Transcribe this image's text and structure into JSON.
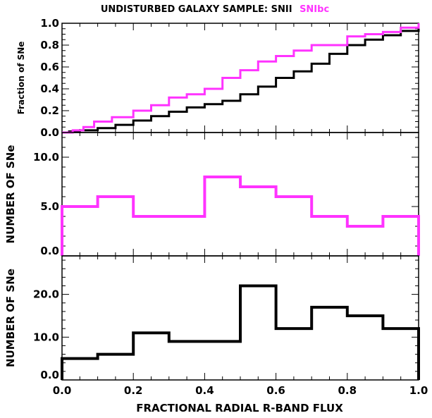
{
  "figure": {
    "title_prefix": "UNDISTURBED GALAXY SAMPLE: SNII",
    "title_sn1bc": "SNIbc",
    "xlabel": "FRACTIONAL RADIAL R-BAND FLUX",
    "colors": {
      "snii": "#000000",
      "snibc": "#ff33ff",
      "axes": "#000000"
    }
  },
  "chart_data": [
    {
      "type": "line",
      "name": "cumulative-panel",
      "ylabel": "Fraction of SNe",
      "xlim": [
        0,
        1
      ],
      "ylim": [
        0,
        1
      ],
      "x_ticks": [
        0.0,
        0.2,
        0.4,
        0.6,
        0.8,
        1.0
      ],
      "y_ticks": [
        0,
        0.2,
        0.4,
        0.6,
        0.8,
        1
      ],
      "y_tick_labels": [
        "0.0",
        "0.2",
        "0.4",
        "0.6",
        "0.8",
        "1.0"
      ],
      "series": [
        {
          "name": "SNII",
          "color": "#000000",
          "x": [
            0.0,
            0.02,
            0.05,
            0.1,
            0.15,
            0.2,
            0.25,
            0.3,
            0.35,
            0.4,
            0.45,
            0.5,
            0.55,
            0.6,
            0.65,
            0.7,
            0.75,
            0.8,
            0.85,
            0.9,
            0.95,
            1.0
          ],
          "y": [
            0.0,
            0.01,
            0.02,
            0.04,
            0.07,
            0.11,
            0.15,
            0.19,
            0.23,
            0.26,
            0.29,
            0.35,
            0.42,
            0.5,
            0.56,
            0.63,
            0.72,
            0.8,
            0.85,
            0.89,
            0.93,
            0.98
          ]
        },
        {
          "name": "SNIbc",
          "color": "#ff33ff",
          "x": [
            0.0,
            0.03,
            0.06,
            0.09,
            0.14,
            0.2,
            0.25,
            0.3,
            0.35,
            0.4,
            0.45,
            0.5,
            0.55,
            0.6,
            0.65,
            0.7,
            0.75,
            0.8,
            0.85,
            0.9,
            0.95,
            1.0
          ],
          "y": [
            0.0,
            0.02,
            0.05,
            0.1,
            0.14,
            0.2,
            0.25,
            0.32,
            0.35,
            0.4,
            0.5,
            0.57,
            0.65,
            0.7,
            0.75,
            0.8,
            0.8,
            0.88,
            0.9,
            0.92,
            0.96,
            1.0
          ]
        }
      ]
    },
    {
      "type": "bar",
      "name": "snibc-histogram",
      "ylabel": "NUMBER OF SNe",
      "color": "#ff33ff",
      "bin_edges": [
        0.0,
        0.1,
        0.2,
        0.3,
        0.4,
        0.5,
        0.6,
        0.7,
        0.8,
        0.9,
        1.0
      ],
      "values": [
        5,
        6,
        4,
        4,
        8,
        7,
        6,
        4,
        3,
        4
      ],
      "xlim": [
        0,
        1
      ],
      "ylim": [
        0,
        12.5
      ],
      "y_ticks": [
        0,
        5,
        10
      ],
      "y_tick_labels": [
        "0.0",
        "5.0",
        "10.0"
      ]
    },
    {
      "type": "bar",
      "name": "snii-histogram",
      "ylabel": "NUMBER OF SNe",
      "color": "#000000",
      "bin_edges": [
        0.0,
        0.1,
        0.2,
        0.3,
        0.4,
        0.5,
        0.6,
        0.7,
        0.8,
        0.9,
        1.0
      ],
      "values": [
        5,
        6,
        11,
        9,
        9,
        22,
        12,
        17,
        15,
        12
      ],
      "xlim": [
        0,
        1
      ],
      "ylim": [
        0,
        29
      ],
      "y_ticks": [
        0,
        10,
        20
      ],
      "y_tick_labels": [
        "0.0",
        "10.0",
        "20.0"
      ],
      "x_ticks": [
        0.0,
        0.2,
        0.4,
        0.6,
        0.8,
        1.0
      ],
      "x_tick_labels": [
        "0.0",
        "0.2",
        "0.4",
        "0.6",
        "0.8",
        "1.0"
      ]
    }
  ]
}
